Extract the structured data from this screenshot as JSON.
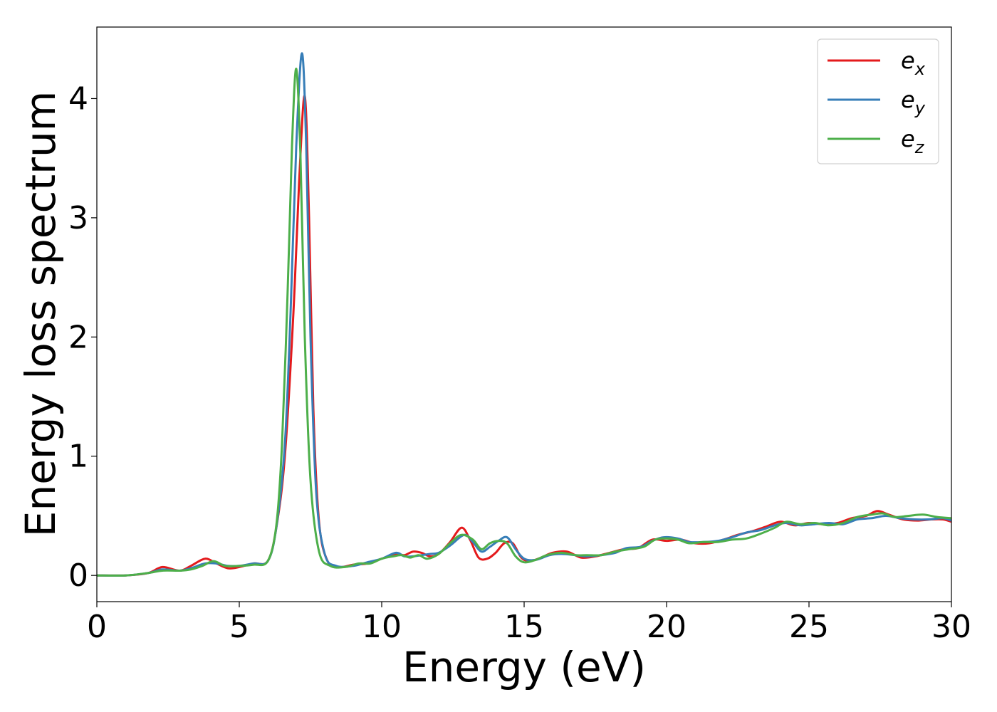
{
  "chart_data": {
    "type": "line",
    "xlabel": "Energy (eV)",
    "ylabel": "Energy loss spectrum",
    "xlim": [
      0,
      30
    ],
    "ylim": [
      -0.22,
      4.6
    ],
    "xticks": [
      0,
      5,
      10,
      15,
      20,
      25,
      30
    ],
    "yticks": [
      0,
      1,
      2,
      3,
      4
    ],
    "legend_position": "top-right",
    "grid": false,
    "series": [
      {
        "name": "e_x",
        "label_base": "e",
        "label_sub": "x",
        "color": "#e41a1c",
        "points": [
          [
            0,
            0
          ],
          [
            1.0,
            0.0
          ],
          [
            1.8,
            0.02
          ],
          [
            2.3,
            0.07
          ],
          [
            2.9,
            0.04
          ],
          [
            3.3,
            0.08
          ],
          [
            3.8,
            0.14
          ],
          [
            4.2,
            0.1
          ],
          [
            4.6,
            0.06
          ],
          [
            5.0,
            0.07
          ],
          [
            5.5,
            0.1
          ],
          [
            6.0,
            0.12
          ],
          [
            6.3,
            0.4
          ],
          [
            6.6,
            1.0
          ],
          [
            6.9,
            2.2
          ],
          [
            7.1,
            3.3
          ],
          [
            7.3,
            4.02
          ],
          [
            7.45,
            3.0
          ],
          [
            7.6,
            1.4
          ],
          [
            7.8,
            0.45
          ],
          [
            8.1,
            0.12
          ],
          [
            8.5,
            0.07
          ],
          [
            9.0,
            0.09
          ],
          [
            9.5,
            0.1
          ],
          [
            10.0,
            0.14
          ],
          [
            10.5,
            0.18
          ],
          [
            10.8,
            0.17
          ],
          [
            11.1,
            0.2
          ],
          [
            11.4,
            0.19
          ],
          [
            11.7,
            0.16
          ],
          [
            12.0,
            0.18
          ],
          [
            12.4,
            0.28
          ],
          [
            12.8,
            0.4
          ],
          [
            13.1,
            0.3
          ],
          [
            13.4,
            0.15
          ],
          [
            13.7,
            0.14
          ],
          [
            14.0,
            0.19
          ],
          [
            14.3,
            0.27
          ],
          [
            14.6,
            0.27
          ],
          [
            14.9,
            0.15
          ],
          [
            15.2,
            0.12
          ],
          [
            15.6,
            0.15
          ],
          [
            16.0,
            0.19
          ],
          [
            16.5,
            0.2
          ],
          [
            17.0,
            0.15
          ],
          [
            17.5,
            0.16
          ],
          [
            18.0,
            0.19
          ],
          [
            18.5,
            0.22
          ],
          [
            19.0,
            0.23
          ],
          [
            19.5,
            0.3
          ],
          [
            20.0,
            0.29
          ],
          [
            20.5,
            0.3
          ],
          [
            21.0,
            0.27
          ],
          [
            21.5,
            0.27
          ],
          [
            22.0,
            0.3
          ],
          [
            22.5,
            0.34
          ],
          [
            23.0,
            0.37
          ],
          [
            23.5,
            0.41
          ],
          [
            24.0,
            0.45
          ],
          [
            24.5,
            0.42
          ],
          [
            25.0,
            0.44
          ],
          [
            25.5,
            0.43
          ],
          [
            26.0,
            0.44
          ],
          [
            26.5,
            0.48
          ],
          [
            27.0,
            0.5
          ],
          [
            27.4,
            0.54
          ],
          [
            27.8,
            0.51
          ],
          [
            28.3,
            0.47
          ],
          [
            28.8,
            0.46
          ],
          [
            29.3,
            0.47
          ],
          [
            29.7,
            0.47
          ],
          [
            30.0,
            0.45
          ]
        ]
      },
      {
        "name": "e_y",
        "label_base": "e",
        "label_sub": "y",
        "color": "#377eb8",
        "points": [
          [
            0,
            0
          ],
          [
            1.0,
            0.0
          ],
          [
            1.8,
            0.02
          ],
          [
            2.3,
            0.05
          ],
          [
            2.9,
            0.04
          ],
          [
            3.3,
            0.06
          ],
          [
            3.8,
            0.1
          ],
          [
            4.2,
            0.1
          ],
          [
            4.6,
            0.08
          ],
          [
            5.0,
            0.08
          ],
          [
            5.5,
            0.1
          ],
          [
            6.0,
            0.12
          ],
          [
            6.3,
            0.4
          ],
          [
            6.6,
            1.1
          ],
          [
            6.8,
            2.2
          ],
          [
            7.0,
            3.6
          ],
          [
            7.2,
            4.38
          ],
          [
            7.35,
            3.6
          ],
          [
            7.5,
            2.0
          ],
          [
            7.7,
            0.7
          ],
          [
            8.0,
            0.18
          ],
          [
            8.4,
            0.08
          ],
          [
            9.0,
            0.08
          ],
          [
            9.5,
            0.11
          ],
          [
            10.0,
            0.14
          ],
          [
            10.5,
            0.19
          ],
          [
            10.8,
            0.16
          ],
          [
            11.1,
            0.16
          ],
          [
            11.4,
            0.17
          ],
          [
            11.7,
            0.18
          ],
          [
            12.0,
            0.19
          ],
          [
            12.4,
            0.25
          ],
          [
            12.9,
            0.34
          ],
          [
            13.2,
            0.28
          ],
          [
            13.5,
            0.2
          ],
          [
            13.8,
            0.24
          ],
          [
            14.1,
            0.29
          ],
          [
            14.4,
            0.32
          ],
          [
            14.7,
            0.22
          ],
          [
            15.0,
            0.14
          ],
          [
            15.4,
            0.13
          ],
          [
            15.9,
            0.17
          ],
          [
            16.3,
            0.18
          ],
          [
            16.8,
            0.17
          ],
          [
            17.2,
            0.16
          ],
          [
            17.7,
            0.17
          ],
          [
            18.2,
            0.19
          ],
          [
            18.6,
            0.23
          ],
          [
            19.1,
            0.24
          ],
          [
            19.5,
            0.29
          ],
          [
            19.9,
            0.32
          ],
          [
            20.4,
            0.31
          ],
          [
            20.8,
            0.28
          ],
          [
            21.3,
            0.28
          ],
          [
            21.8,
            0.29
          ],
          [
            22.3,
            0.32
          ],
          [
            22.8,
            0.36
          ],
          [
            23.3,
            0.38
          ],
          [
            23.8,
            0.42
          ],
          [
            24.2,
            0.44
          ],
          [
            24.7,
            0.42
          ],
          [
            25.2,
            0.43
          ],
          [
            25.7,
            0.44
          ],
          [
            26.2,
            0.43
          ],
          [
            26.7,
            0.47
          ],
          [
            27.2,
            0.48
          ],
          [
            27.7,
            0.5
          ],
          [
            28.2,
            0.48
          ],
          [
            28.7,
            0.47
          ],
          [
            29.2,
            0.47
          ],
          [
            29.7,
            0.48
          ],
          [
            30.0,
            0.46
          ]
        ]
      },
      {
        "name": "e_z",
        "label_base": "e",
        "label_sub": "z",
        "color": "#4daf4a",
        "points": [
          [
            0,
            0
          ],
          [
            1.0,
            0.0
          ],
          [
            1.8,
            0.02
          ],
          [
            2.3,
            0.04
          ],
          [
            2.9,
            0.04
          ],
          [
            3.3,
            0.05
          ],
          [
            3.7,
            0.08
          ],
          [
            4.1,
            0.12
          ],
          [
            4.5,
            0.08
          ],
          [
            5.0,
            0.08
          ],
          [
            5.5,
            0.09
          ],
          [
            6.0,
            0.12
          ],
          [
            6.3,
            0.42
          ],
          [
            6.5,
            1.1
          ],
          [
            6.7,
            2.4
          ],
          [
            6.85,
            3.6
          ],
          [
            7.0,
            4.25
          ],
          [
            7.15,
            3.5
          ],
          [
            7.3,
            2.0
          ],
          [
            7.5,
            0.8
          ],
          [
            7.8,
            0.2
          ],
          [
            8.2,
            0.08
          ],
          [
            8.7,
            0.07
          ],
          [
            9.2,
            0.1
          ],
          [
            9.6,
            0.1
          ],
          [
            10.0,
            0.14
          ],
          [
            10.4,
            0.16
          ],
          [
            10.7,
            0.17
          ],
          [
            11.0,
            0.15
          ],
          [
            11.3,
            0.17
          ],
          [
            11.6,
            0.14
          ],
          [
            12.0,
            0.18
          ],
          [
            12.4,
            0.27
          ],
          [
            12.8,
            0.34
          ],
          [
            13.2,
            0.3
          ],
          [
            13.5,
            0.22
          ],
          [
            13.8,
            0.27
          ],
          [
            14.1,
            0.29
          ],
          [
            14.4,
            0.27
          ],
          [
            14.7,
            0.16
          ],
          [
            15.0,
            0.11
          ],
          [
            15.4,
            0.13
          ],
          [
            15.8,
            0.17
          ],
          [
            16.3,
            0.19
          ],
          [
            16.8,
            0.17
          ],
          [
            17.2,
            0.17
          ],
          [
            17.7,
            0.17
          ],
          [
            18.2,
            0.2
          ],
          [
            18.7,
            0.22
          ],
          [
            19.2,
            0.24
          ],
          [
            19.6,
            0.3
          ],
          [
            20.0,
            0.31
          ],
          [
            20.4,
            0.3
          ],
          [
            20.8,
            0.27
          ],
          [
            21.3,
            0.28
          ],
          [
            21.8,
            0.28
          ],
          [
            22.3,
            0.3
          ],
          [
            22.8,
            0.31
          ],
          [
            23.3,
            0.35
          ],
          [
            23.8,
            0.4
          ],
          [
            24.2,
            0.45
          ],
          [
            24.7,
            0.43
          ],
          [
            25.2,
            0.44
          ],
          [
            25.7,
            0.42
          ],
          [
            26.2,
            0.44
          ],
          [
            26.7,
            0.49
          ],
          [
            27.2,
            0.51
          ],
          [
            27.6,
            0.52
          ],
          [
            28.0,
            0.49
          ],
          [
            28.5,
            0.5
          ],
          [
            29.0,
            0.51
          ],
          [
            29.5,
            0.49
          ],
          [
            30.0,
            0.48
          ]
        ]
      }
    ]
  }
}
